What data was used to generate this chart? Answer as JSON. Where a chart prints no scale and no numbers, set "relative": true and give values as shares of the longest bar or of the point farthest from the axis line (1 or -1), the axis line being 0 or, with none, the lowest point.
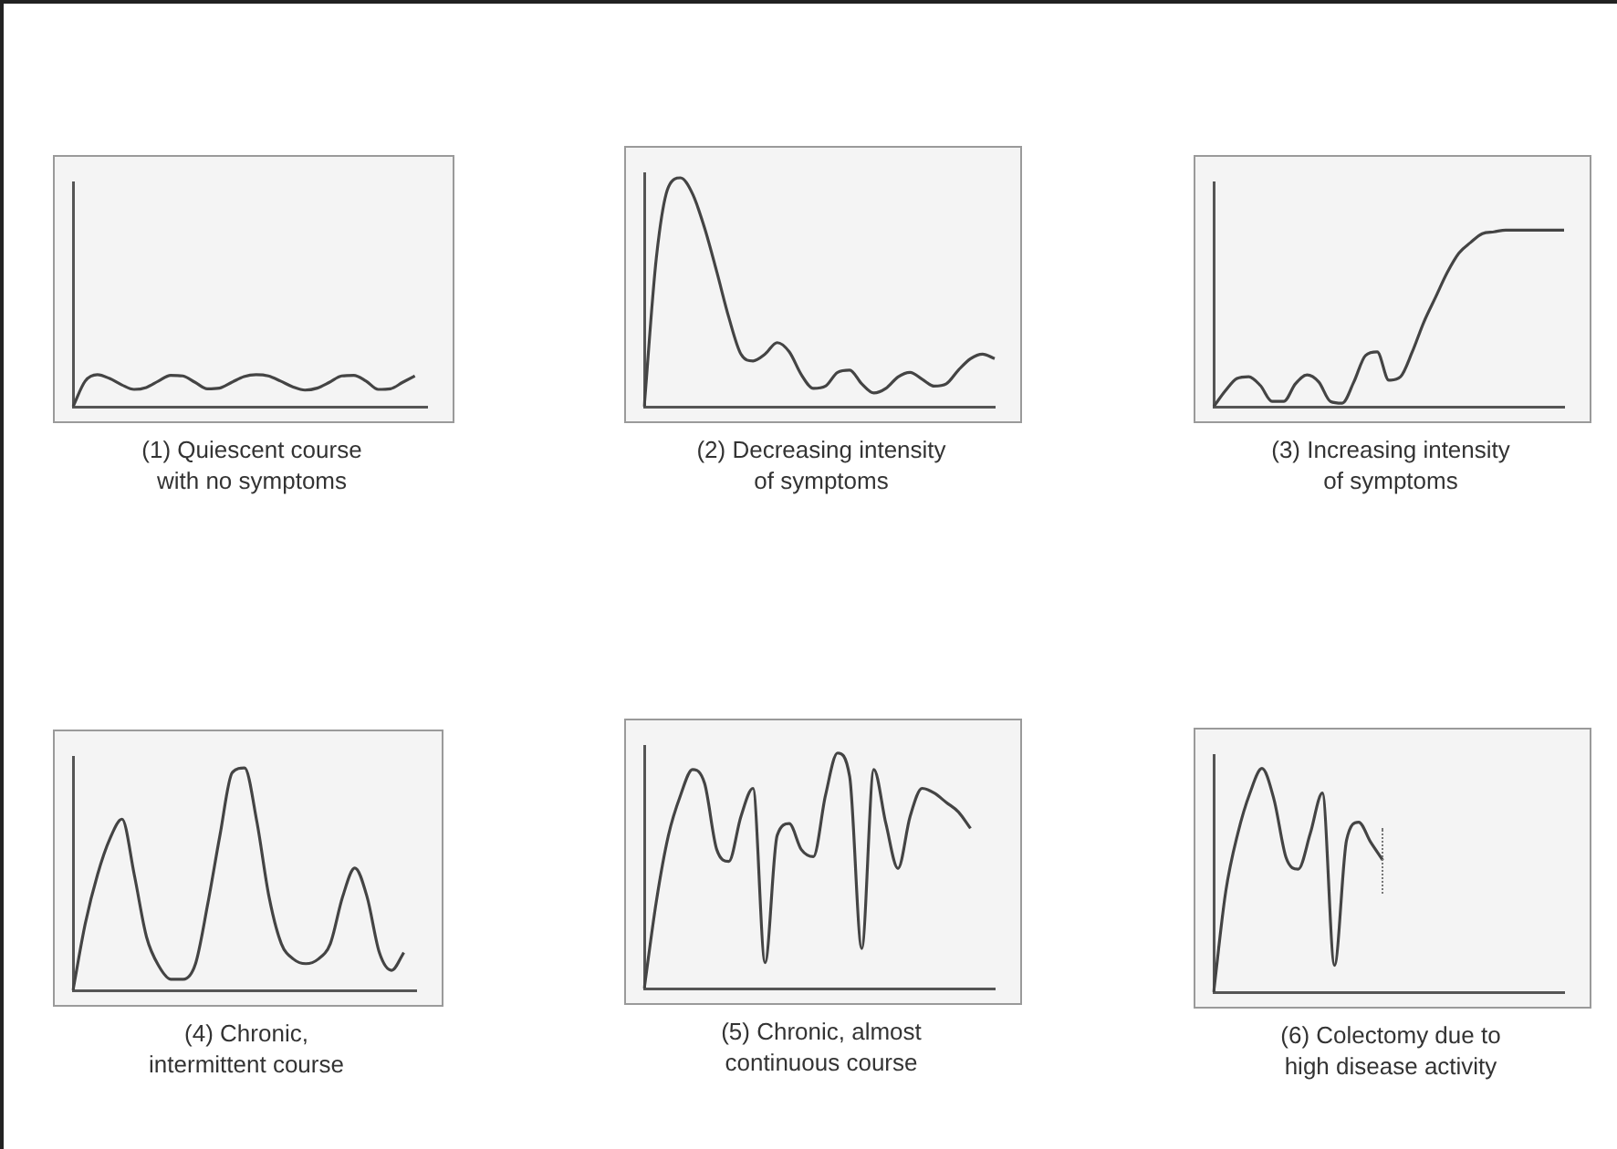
{
  "chart_data": [
    {
      "type": "line",
      "title": "(1) Quiescent course\nwith no symptoms",
      "relative": true,
      "categories": [
        null,
        null,
        null,
        null,
        null,
        null,
        null,
        null,
        null,
        null,
        null,
        null,
        null,
        null,
        null,
        null,
        null,
        null,
        null,
        null,
        null,
        null,
        null,
        null,
        null,
        null,
        null,
        null,
        null,
        null
      ],
      "series": [
        {
          "color": "#444444",
          "values": [
            0,
            0.8,
            1,
            0.88,
            0.68,
            0.54,
            0.6,
            0.8,
            0.98,
            0.96,
            0.76,
            0.56,
            0.58,
            0.76,
            0.94,
            1,
            0.96,
            0.8,
            0.62,
            0.52,
            0.58,
            0.76,
            0.96,
            0.98,
            0.8,
            0.54,
            0.56,
            0.76,
            0.96,
            null
          ]
        }
      ]
    },
    {
      "type": "line",
      "title": "(2) Decreasing intensity\nof symptoms",
      "relative": true,
      "categories": [
        null,
        null,
        null,
        null,
        null,
        null,
        null,
        null,
        null,
        null,
        null,
        null,
        null,
        null,
        null,
        null,
        null,
        null,
        null,
        null,
        null,
        null,
        null,
        null,
        null,
        null,
        null,
        null,
        null,
        null
      ],
      "series": [
        {
          "color": "#444444",
          "values": [
            0,
            0.65,
            0.96,
            1,
            0.93,
            0.78,
            0.59,
            0.39,
            0.23,
            0.2,
            0.23,
            0.28,
            0.24,
            0.14,
            0.08,
            0.09,
            0.15,
            0.16,
            0.1,
            0.06,
            0.08,
            0.13,
            0.15,
            0.12,
            0.09,
            0.1,
            0.16,
            0.21,
            0.23,
            0.21
          ]
        }
      ]
    },
    {
      "type": "line",
      "title": "(3) Increasing intensity\nof symptoms",
      "relative": true,
      "categories": [
        null,
        null,
        null,
        null,
        null,
        null,
        null,
        null,
        null,
        null,
        null,
        null,
        null,
        null,
        null,
        null,
        null,
        null,
        null,
        null,
        null,
        null,
        null,
        null,
        null,
        null,
        null,
        null,
        null,
        null,
        null
      ],
      "series": [
        {
          "color": "#444444",
          "values": [
            0,
            0.09,
            0.16,
            0.17,
            0.12,
            0.03,
            0.03,
            0.13,
            0.18,
            0.14,
            0.03,
            0.02,
            0.14,
            0.29,
            0.31,
            0.15,
            0.17,
            0.31,
            0.48,
            0.62,
            0.76,
            0.87,
            0.93,
            0.98,
            0.99,
            1,
            1,
            1,
            1,
            1,
            1
          ]
        }
      ]
    },
    {
      "type": "line",
      "title": "(4) Chronic,\nintermittent course",
      "relative": true,
      "categories": [
        null,
        null,
        null,
        null,
        null,
        null,
        null,
        null,
        null,
        null,
        null,
        null,
        null,
        null,
        null,
        null,
        null,
        null,
        null,
        null,
        null,
        null,
        null,
        null,
        null,
        null,
        null,
        null,
        null
      ],
      "series": [
        {
          "color": "#444444",
          "values": [
            0,
            0.3,
            0.52,
            0.68,
            0.77,
            0.52,
            0.24,
            0.11,
            0.05,
            0.05,
            0.12,
            0.39,
            0.7,
            0.98,
            1,
            0.76,
            0.42,
            0.21,
            0.14,
            0.12,
            0.14,
            0.21,
            0.42,
            0.55,
            0.42,
            0.17,
            0.09,
            0.17,
            null
          ]
        }
      ]
    },
    {
      "type": "line",
      "title": "(5) Chronic, almost\ncontinuous course",
      "relative": true,
      "categories": [
        null,
        null,
        null,
        null,
        null,
        null,
        null,
        null,
        null,
        null,
        null,
        null,
        null,
        null,
        null,
        null,
        null,
        null,
        null,
        null,
        null,
        null,
        null,
        null,
        null,
        null,
        null,
        null,
        null,
        null
      ],
      "series": [
        {
          "color": "#444444",
          "values": [
            0,
            0.37,
            0.65,
            0.82,
            0.93,
            0.87,
            0.59,
            0.54,
            0.73,
            0.85,
            0.11,
            0.65,
            0.7,
            0.59,
            0.56,
            0.82,
            1,
            0.9,
            0.17,
            0.93,
            0.7,
            0.51,
            0.73,
            0.85,
            0.83,
            0.79,
            0.75,
            0.68,
            null,
            null
          ]
        }
      ]
    },
    {
      "type": "line",
      "title": "(6) Colectomy due to\nhigh disease activity",
      "relative": true,
      "categories": [
        null,
        null,
        null,
        null,
        null,
        null,
        null,
        null,
        null,
        null,
        null,
        null,
        null,
        null,
        null,
        null,
        null,
        null,
        null,
        null,
        null,
        null,
        null,
        null,
        null,
        null,
        null,
        null,
        null,
        null
      ],
      "series": [
        {
          "color": "#444444",
          "values": [
            0,
            0.45,
            0.71,
            0.89,
            1,
            0.86,
            0.6,
            0.55,
            0.71,
            0.89,
            0.12,
            0.68,
            0.76,
            0.67,
            0.59,
            null,
            null,
            null,
            null,
            null,
            null,
            null,
            null,
            null,
            null,
            null,
            null,
            null,
            null,
            null
          ]
        }
      ]
    }
  ]
}
